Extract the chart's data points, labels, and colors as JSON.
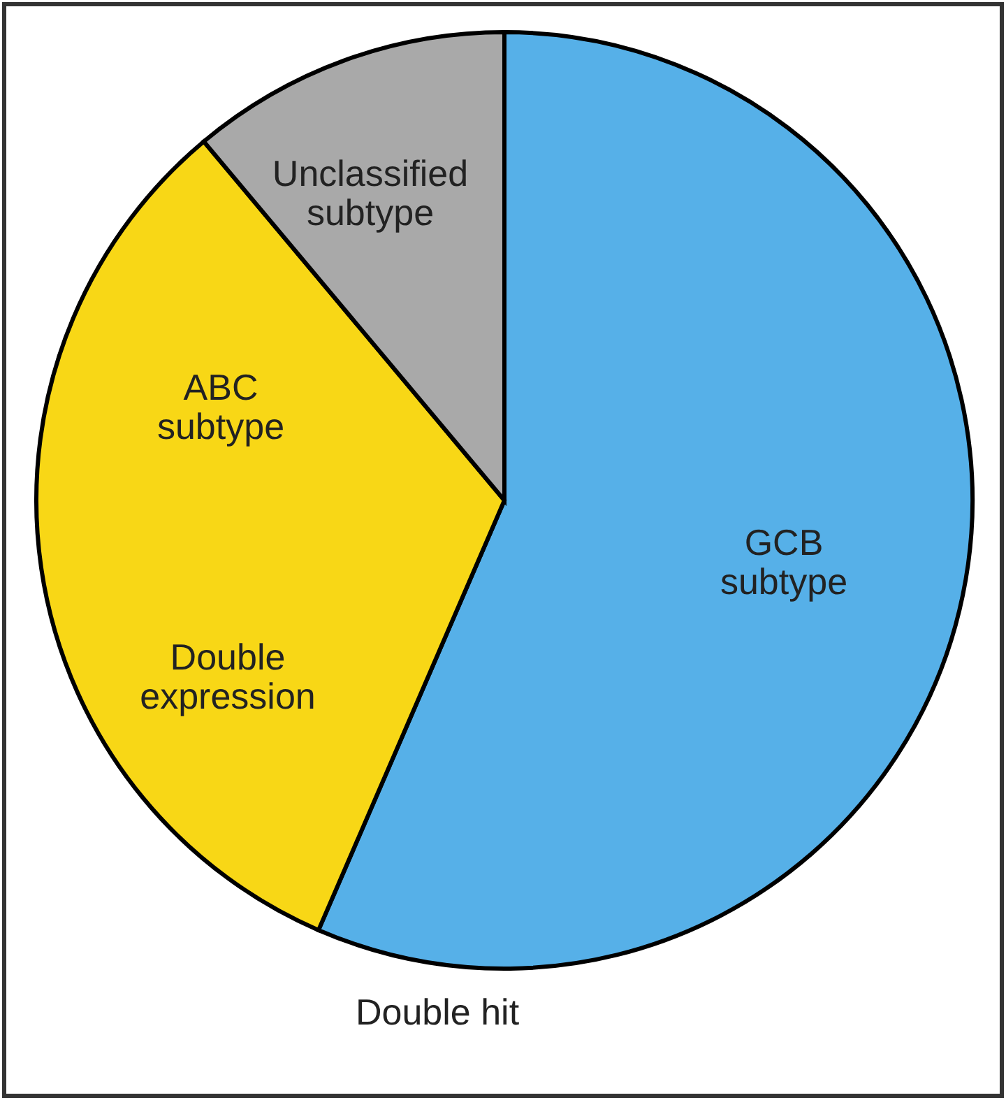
{
  "chart_data": {
    "type": "pie",
    "categories": [
      "GCB subtype",
      "ABC subtype",
      "Unclassified subtype"
    ],
    "values": [
      56.5,
      32.4,
      11.1
    ],
    "colors": [
      "#56b0e8",
      "#f8d716",
      "#a9a9a9"
    ],
    "annotations": [
      "Double expression",
      "Double hit"
    ]
  }
}
